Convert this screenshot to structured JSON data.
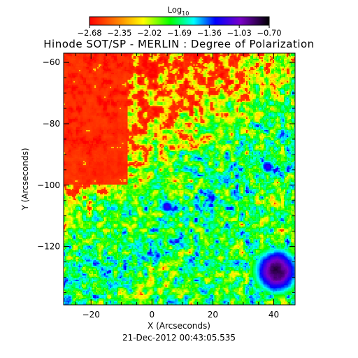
{
  "chart_data": {
    "type": "heatmap",
    "title": "Hinode SOT/SP - MERLIN : Degree of Polarization",
    "xlabel": "X (Arcseconds)",
    "ylabel": "Y (Arcseconds)",
    "xlim": [
      -29,
      47
    ],
    "ylim": [
      -139,
      -57
    ],
    "x_ticks": [
      -20,
      0,
      20,
      40
    ],
    "y_ticks": [
      -60,
      -80,
      -100,
      -120
    ],
    "colorbar": {
      "title_base": "Log",
      "title_subscript": "10",
      "range": [
        -2.68,
        -0.7
      ],
      "tick_labels": [
        "-2.68",
        "-2.35",
        "-2.02",
        "-1.69",
        "-1.36",
        "-1.03",
        "-0.70"
      ],
      "colormap": "rainbow-red-yellow-green-cyan-blue-violet-black"
    },
    "features": [
      {
        "kind": "strong-polarization",
        "x": 41,
        "y": -128,
        "radius": 8,
        "peak": -0.8
      },
      {
        "kind": "strong-polarization",
        "x": 38,
        "y": -94,
        "radius": 3,
        "peak": -1.2
      },
      {
        "kind": "strong-polarization",
        "x": 5,
        "y": -107,
        "radius": 3,
        "peak": -1.2
      },
      {
        "kind": "strong-polarization",
        "x": 2,
        "y": -123,
        "radius": 2,
        "peak": -1.3
      }
    ],
    "timestamp": "21-Dec-2012 00:43:05.535"
  }
}
